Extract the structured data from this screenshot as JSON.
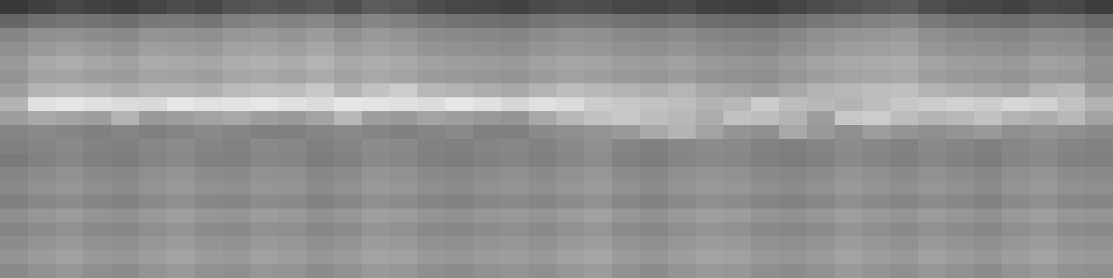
{
  "chart_data": {
    "type": "heatmap",
    "tick_labels": false,
    "zlim": [
      0,
      100
    ],
    "cells": [
      [
        22,
        25,
        28,
        26,
        24,
        27,
        30,
        28,
        32,
        34,
        33,
        35,
        31,
        36,
        34,
        30,
        28,
        27,
        26,
        29,
        31,
        30,
        28,
        27,
        29,
        26,
        25,
        24,
        27,
        30,
        32,
        34,
        36,
        31,
        28,
        27,
        26,
        29,
        28,
        24
      ],
      [
        40,
        44,
        46,
        45,
        43,
        47,
        48,
        46,
        50,
        52,
        51,
        53,
        49,
        52,
        50,
        47,
        45,
        44,
        43,
        46,
        48,
        47,
        45,
        44,
        46,
        43,
        42,
        41,
        44,
        47,
        49,
        51,
        52,
        48,
        45,
        44,
        43,
        46,
        45,
        41
      ],
      [
        52,
        56,
        57,
        55,
        54,
        58,
        57,
        56,
        59,
        60,
        58,
        61,
        57,
        60,
        58,
        55,
        54,
        53,
        52,
        55,
        57,
        56,
        54,
        53,
        55,
        52,
        51,
        50,
        53,
        56,
        58,
        59,
        60,
        56,
        54,
        53,
        52,
        55,
        54,
        50
      ],
      [
        56,
        60,
        62,
        60,
        58,
        62,
        61,
        60,
        63,
        64,
        62,
        65,
        61,
        63,
        61,
        58,
        57,
        56,
        55,
        58,
        60,
        59,
        57,
        56,
        58,
        55,
        54,
        53,
        56,
        59,
        61,
        62,
        63,
        59,
        57,
        56,
        55,
        58,
        57,
        53
      ],
      [
        60,
        66,
        68,
        65,
        63,
        67,
        66,
        65,
        68,
        69,
        67,
        70,
        66,
        68,
        66,
        63,
        62,
        61,
        60,
        63,
        65,
        64,
        62,
        61,
        63,
        60,
        59,
        58,
        61,
        64,
        66,
        67,
        68,
        64,
        62,
        61,
        60,
        63,
        62,
        57
      ],
      [
        58,
        63,
        64,
        62,
        61,
        64,
        63,
        62,
        65,
        66,
        64,
        67,
        63,
        66,
        64,
        61,
        60,
        59,
        58,
        61,
        63,
        62,
        60,
        59,
        61,
        58,
        57,
        56,
        59,
        62,
        64,
        65,
        66,
        62,
        60,
        59,
        58,
        61,
        60,
        56
      ],
      [
        62,
        70,
        72,
        70,
        68,
        71,
        70,
        69,
        73,
        75,
        74,
        78,
        70,
        76,
        80,
        72,
        70,
        68,
        66,
        70,
        74,
        72,
        70,
        68,
        71,
        66,
        64,
        62,
        66,
        70,
        72,
        74,
        75,
        70,
        68,
        66,
        64,
        70,
        72,
        62
      ],
      [
        70,
        88,
        90,
        88,
        86,
        85,
        90,
        88,
        89,
        90,
        88,
        86,
        90,
        89,
        88,
        86,
        90,
        88,
        84,
        88,
        86,
        80,
        78,
        76,
        74,
        70,
        72,
        80,
        74,
        72,
        70,
        74,
        78,
        80,
        82,
        80,
        84,
        82,
        76,
        70
      ],
      [
        62,
        66,
        64,
        62,
        70,
        60,
        62,
        64,
        66,
        62,
        60,
        64,
        72,
        62,
        60,
        64,
        62,
        60,
        58,
        66,
        72,
        76,
        78,
        74,
        72,
        68,
        76,
        74,
        70,
        62,
        78,
        80,
        74,
        70,
        72,
        76,
        70,
        68,
        72,
        64
      ],
      [
        52,
        54,
        52,
        50,
        52,
        50,
        52,
        54,
        52,
        50,
        50,
        52,
        54,
        52,
        50,
        52,
        54,
        50,
        50,
        54,
        56,
        58,
        60,
        66,
        70,
        64,
        58,
        56,
        66,
        60,
        56,
        62,
        58,
        56,
        58,
        60,
        56,
        58,
        56,
        54
      ],
      [
        50,
        52,
        54,
        51,
        50,
        53,
        55,
        52,
        51,
        54,
        53,
        50,
        52,
        55,
        54,
        51,
        50,
        52,
        53,
        51,
        54,
        56,
        52,
        50,
        53,
        55,
        54,
        51,
        50,
        52,
        55,
        53,
        51,
        54,
        52,
        50,
        53,
        55,
        52,
        51
      ],
      [
        48,
        51,
        53,
        50,
        49,
        52,
        54,
        51,
        50,
        53,
        52,
        49,
        51,
        54,
        53,
        50,
        49,
        51,
        52,
        50,
        53,
        55,
        51,
        49,
        52,
        54,
        53,
        50,
        49,
        51,
        54,
        52,
        50,
        53,
        51,
        49,
        52,
        54,
        51,
        50
      ],
      [
        52,
        55,
        57,
        54,
        53,
        56,
        58,
        55,
        54,
        57,
        56,
        53,
        55,
        58,
        57,
        54,
        53,
        55,
        56,
        54,
        57,
        59,
        55,
        53,
        56,
        58,
        57,
        54,
        53,
        55,
        58,
        56,
        54,
        57,
        55,
        53,
        56,
        58,
        55,
        54
      ],
      [
        54,
        57,
        59,
        56,
        55,
        58,
        60,
        57,
        56,
        59,
        58,
        55,
        57,
        60,
        59,
        56,
        55,
        57,
        58,
        56,
        59,
        61,
        57,
        55,
        58,
        60,
        59,
        56,
        55,
        57,
        60,
        58,
        56,
        59,
        57,
        55,
        58,
        60,
        57,
        56
      ],
      [
        50,
        53,
        55,
        52,
        51,
        54,
        56,
        53,
        52,
        55,
        54,
        51,
        53,
        56,
        55,
        52,
        51,
        53,
        54,
        52,
        55,
        57,
        53,
        51,
        54,
        56,
        55,
        52,
        51,
        53,
        56,
        54,
        52,
        55,
        53,
        51,
        54,
        56,
        53,
        52
      ],
      [
        56,
        59,
        61,
        58,
        57,
        60,
        62,
        59,
        58,
        61,
        60,
        57,
        59,
        62,
        61,
        58,
        57,
        59,
        60,
        58,
        61,
        63,
        59,
        57,
        60,
        62,
        61,
        58,
        57,
        59,
        62,
        60,
        58,
        61,
        59,
        57,
        60,
        62,
        59,
        58
      ],
      [
        52,
        55,
        57,
        54,
        53,
        56,
        58,
        55,
        54,
        57,
        56,
        53,
        55,
        58,
        57,
        54,
        53,
        55,
        56,
        54,
        57,
        59,
        55,
        53,
        56,
        58,
        57,
        54,
        53,
        55,
        58,
        56,
        54,
        57,
        55,
        53,
        56,
        58,
        55,
        54
      ],
      [
        55,
        58,
        60,
        57,
        56,
        59,
        61,
        58,
        57,
        60,
        59,
        56,
        58,
        61,
        60,
        57,
        56,
        58,
        59,
        57,
        60,
        62,
        58,
        56,
        59,
        61,
        60,
        57,
        56,
        58,
        61,
        59,
        57,
        60,
        58,
        56,
        59,
        61,
        58,
        57
      ],
      [
        58,
        61,
        63,
        60,
        59,
        62,
        64,
        61,
        60,
        63,
        62,
        59,
        61,
        64,
        63,
        60,
        59,
        61,
        62,
        60,
        63,
        65,
        61,
        59,
        62,
        64,
        63,
        60,
        59,
        61,
        64,
        62,
        60,
        63,
        61,
        59,
        62,
        64,
        61,
        60
      ],
      [
        54,
        57,
        59,
        56,
        55,
        58,
        60,
        57,
        56,
        59,
        58,
        55,
        57,
        60,
        59,
        56,
        55,
        57,
        58,
        56,
        59,
        61,
        57,
        55,
        58,
        60,
        59,
        56,
        55,
        57,
        60,
        58,
        56,
        59,
        57,
        55,
        58,
        60,
        57,
        56
      ]
    ]
  }
}
